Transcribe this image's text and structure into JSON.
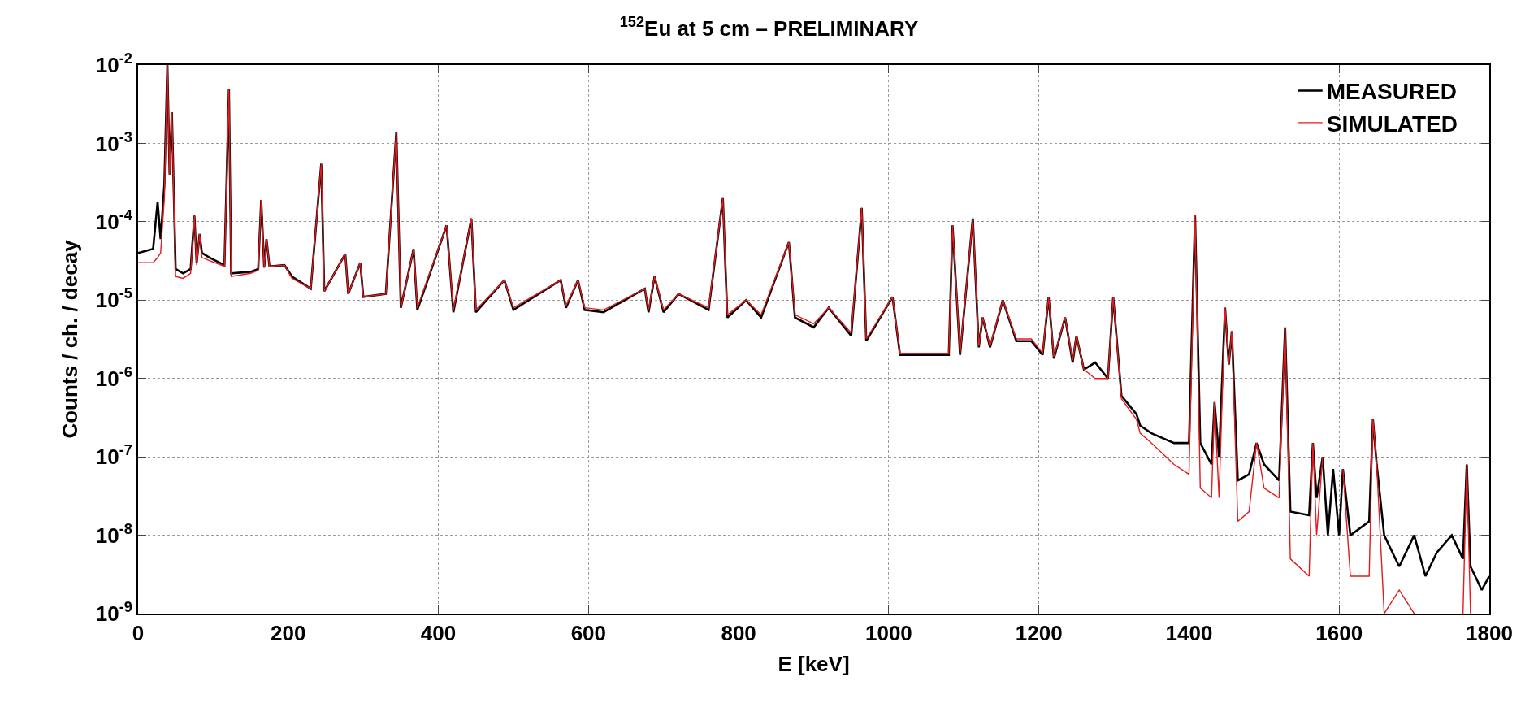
{
  "chart_data": {
    "type": "line",
    "title": "$^{152}$Eu at 5 cm – PRELIMINARY",
    "xlabel": "E [keV]",
    "ylabel": "Counts / ch. / decay",
    "x": [
      0,
      20,
      26,
      30,
      35,
      39,
      42,
      45,
      50,
      60,
      70,
      75,
      78,
      82,
      85,
      95,
      115,
      121,
      124,
      150,
      160,
      164,
      168,
      171,
      175,
      195,
      205,
      230,
      244,
      248,
      276,
      280,
      296,
      300,
      330,
      344,
      350,
      367,
      372,
      411,
      420,
      444,
      450,
      488,
      500,
      563,
      570,
      586,
      595,
      620,
      675,
      680,
      688,
      700,
      720,
      760,
      779,
      785,
      810,
      830,
      867,
      875,
      900,
      920,
      950,
      964,
      970,
      1005,
      1015,
      1050,
      1080,
      1085,
      1095,
      1112,
      1120,
      1125,
      1135,
      1152,
      1170,
      1190,
      1205,
      1213,
      1220,
      1235,
      1245,
      1250,
      1260,
      1275,
      1292,
      1299,
      1310,
      1330,
      1335,
      1350,
      1380,
      1400,
      1408,
      1415,
      1430,
      1434,
      1440,
      1448,
      1453,
      1457,
      1465,
      1480,
      1490,
      1500,
      1520,
      1528,
      1535,
      1560,
      1565,
      1570,
      1578,
      1585,
      1592,
      1600,
      1605,
      1615,
      1640,
      1645,
      1650,
      1660,
      1680,
      1700,
      1715,
      1730,
      1750,
      1765,
      1770,
      1775,
      1790,
      1800
    ],
    "series": [
      {
        "name": "MEASURED",
        "color": "#000000",
        "values": [
          4e-05,
          4.5e-05,
          0.00018,
          6e-05,
          0.0003,
          0.01,
          0.0004,
          0.0025,
          2.5e-05,
          2.2e-05,
          2.5e-05,
          0.00012,
          3e-05,
          7e-05,
          4e-05,
          3.5e-05,
          2.8e-05,
          0.005,
          2.2e-05,
          2.3e-05,
          2.5e-05,
          0.00019,
          2.6e-05,
          6e-05,
          2.7e-05,
          2.8e-05,
          2e-05,
          1.4e-05,
          0.00055,
          1.3e-05,
          3.9e-05,
          1.2e-05,
          3e-05,
          1.1e-05,
          1.2e-05,
          0.0014,
          8e-06,
          4.5e-05,
          7.5e-06,
          9e-05,
          7e-06,
          0.00011,
          7e-06,
          1.8e-05,
          7.5e-06,
          1.8e-05,
          8e-06,
          1.8e-05,
          7.5e-06,
          7e-06,
          1.4e-05,
          7e-06,
          2e-05,
          7e-06,
          1.2e-05,
          7.5e-06,
          0.0002,
          6e-06,
          1e-05,
          6e-06,
          5.5e-05,
          6e-06,
          4.5e-06,
          8e-06,
          3.5e-06,
          0.00015,
          3e-06,
          1.1e-05,
          2e-06,
          2e-06,
          2e-06,
          9e-05,
          2e-06,
          0.00011,
          2.5e-06,
          6e-06,
          2.5e-06,
          1e-05,
          3e-06,
          3e-06,
          2e-06,
          1.1e-05,
          1.8e-06,
          6e-06,
          1.6e-06,
          3.5e-06,
          1.3e-06,
          1.6e-06,
          1e-06,
          1.1e-05,
          6e-07,
          3.5e-07,
          2.5e-07,
          2e-07,
          1.5e-07,
          1.5e-07,
          0.00012,
          1.5e-07,
          8e-08,
          5e-07,
          1e-07,
          8e-06,
          1.5e-06,
          4e-06,
          5e-08,
          6e-08,
          1.5e-07,
          8e-08,
          5e-08,
          4.5e-06,
          2e-08,
          1.8e-08,
          1.5e-07,
          3e-08,
          1e-07,
          1e-08,
          7e-08,
          1e-08,
          7e-08,
          1e-08,
          1.5e-08,
          3e-07,
          8e-08,
          1e-08,
          4e-09,
          1e-08,
          3e-09,
          6e-09,
          1e-08,
          5e-09,
          8e-08,
          4e-09,
          2e-09,
          3e-09
        ]
      },
      {
        "name": "SIMULATED",
        "color": "#e41a1c",
        "values": [
          3e-05,
          3e-05,
          3.5e-05,
          4e-05,
          0.0002,
          0.01,
          0.0004,
          0.0025,
          2e-05,
          1.9e-05,
          2.2e-05,
          0.00012,
          2.8e-05,
          7e-05,
          3.5e-05,
          3.2e-05,
          2.7e-05,
          0.005,
          2e-05,
          2.2e-05,
          2.4e-05,
          0.00019,
          2.6e-05,
          6e-05,
          2.7e-05,
          2.8e-05,
          1.9e-05,
          1.4e-05,
          0.00055,
          1.3e-05,
          3.9e-05,
          1.2e-05,
          3e-05,
          1.1e-05,
          1.2e-05,
          0.0014,
          8e-06,
          4.5e-05,
          8e-06,
          9e-05,
          7.5e-06,
          0.00011,
          7.5e-06,
          1.8e-05,
          8e-06,
          1.8e-05,
          8.5e-06,
          1.8e-05,
          8e-06,
          7.5e-06,
          1.4e-05,
          7.5e-06,
          2e-05,
          7.5e-06,
          1.2e-05,
          8e-06,
          0.0002,
          6.5e-06,
          1e-05,
          6.5e-06,
          5.5e-05,
          6.5e-06,
          5e-06,
          8e-06,
          3.8e-06,
          0.00015,
          3.2e-06,
          1.1e-05,
          2.1e-06,
          2.1e-06,
          2.1e-06,
          9e-05,
          2.1e-06,
          0.00011,
          2.6e-06,
          6e-06,
          2.6e-06,
          1e-05,
          3.2e-06,
          3.2e-06,
          2.1e-06,
          1.1e-05,
          1.9e-06,
          6e-06,
          1.7e-06,
          3.5e-06,
          1.3e-06,
          1e-06,
          1e-06,
          1.1e-05,
          5.5e-07,
          3e-07,
          2e-07,
          1.5e-07,
          8e-08,
          6e-08,
          0.00012,
          4e-08,
          3e-08,
          5e-07,
          3e-08,
          8e-06,
          1.5e-06,
          4e-06,
          1.5e-08,
          2e-08,
          1.5e-07,
          4e-08,
          3e-08,
          4.5e-06,
          5e-09,
          3e-09,
          1.5e-07,
          1e-08,
          1e-07,
          null,
          null,
          null,
          7e-08,
          3e-09,
          3e-09,
          3e-07,
          8e-08,
          1e-09,
          2e-09,
          1e-09,
          null,
          null,
          null,
          1e-09,
          8e-08,
          1e-09,
          null,
          null
        ]
      }
    ],
    "xlim": [
      0,
      1800
    ],
    "xticks": [
      0,
      200,
      400,
      600,
      800,
      1000,
      1200,
      1400,
      1600,
      1800
    ],
    "ylim": [
      1e-09,
      0.01
    ],
    "log": true,
    "yticks": [
      {
        "value": 1e-09,
        "label": "10$^{-9}$"
      },
      {
        "value": 1e-08,
        "label": "10$^{-8}$"
      },
      {
        "value": 1e-07,
        "label": "10$^{-7}$"
      },
      {
        "value": 1e-06,
        "label": "10$^{-6}$"
      },
      {
        "value": 1e-05,
        "label": "10$^{-5}$"
      },
      {
        "value": 0.0001,
        "label": "10$^{-4}$"
      },
      {
        "value": 0.001,
        "label": "10$^{-3}$"
      },
      {
        "value": 0.01,
        "label": "10$^{-2}$"
      }
    ],
    "grid": true,
    "legend": "top right",
    "line_style": "solid",
    "marker": "none"
  }
}
